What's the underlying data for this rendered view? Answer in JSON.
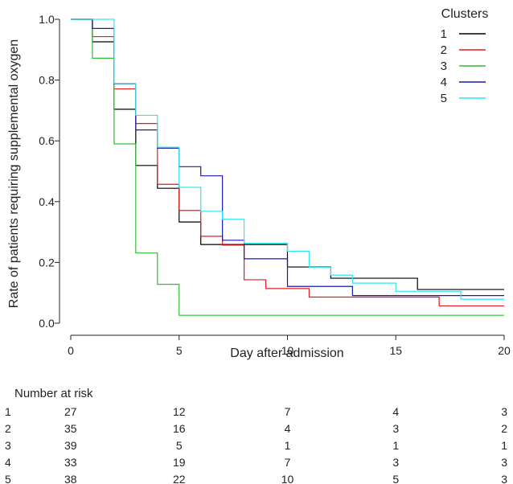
{
  "chart_data": {
    "type": "line",
    "step": true,
    "title": "",
    "xlabel": "Day after admission",
    "ylabel": "Rate of patients requiring supplemental oxygen",
    "xlim": [
      0,
      20
    ],
    "ylim": [
      0,
      1.0
    ],
    "x_ticks": [
      0,
      5,
      10,
      15,
      20
    ],
    "y_ticks": [
      0.0,
      0.2,
      0.4,
      0.6,
      0.8,
      1.0
    ],
    "y_tick_labels": [
      "0.0",
      "0.2",
      "0.4",
      "0.6",
      "0.8",
      "1.0"
    ],
    "grid": false,
    "legend": {
      "title": "Clusters",
      "position": "top-right"
    },
    "series": [
      {
        "name": "1",
        "color": "#000000",
        "x": [
          0,
          1,
          2,
          3,
          4,
          5,
          6,
          7,
          8,
          10,
          12,
          16,
          20
        ],
        "y": [
          1.0,
          0.926,
          0.704,
          0.519,
          0.444,
          0.333,
          0.259,
          0.259,
          0.259,
          0.185,
          0.148,
          0.111,
          0.111
        ]
      },
      {
        "name": "2",
        "color": "#e41a1c",
        "x": [
          0,
          1,
          2,
          3,
          4,
          5,
          6,
          7,
          8,
          9,
          11,
          17,
          20
        ],
        "y": [
          1.0,
          0.943,
          0.771,
          0.657,
          0.457,
          0.371,
          0.286,
          0.257,
          0.143,
          0.114,
          0.086,
          0.057,
          0.057
        ]
      },
      {
        "name": "3",
        "color": "#33bb33",
        "x": [
          0,
          1,
          2,
          3,
          4,
          5,
          20
        ],
        "y": [
          1.0,
          0.872,
          0.59,
          0.231,
          0.128,
          0.026,
          0.026
        ]
      },
      {
        "name": "4",
        "color": "#1a1aa8",
        "x": [
          0,
          1,
          2,
          3,
          4,
          5,
          6,
          7,
          8,
          10,
          13,
          20
        ],
        "y": [
          1.0,
          0.97,
          0.788,
          0.636,
          0.576,
          0.515,
          0.485,
          0.273,
          0.212,
          0.121,
          0.091,
          0.091
        ]
      },
      {
        "name": "5",
        "color": "#2ee6f0",
        "x": [
          0,
          1,
          2,
          3,
          4,
          5,
          6,
          7,
          8,
          10,
          11,
          12,
          13,
          15,
          18,
          20
        ],
        "y": [
          1.0,
          1.0,
          0.789,
          0.684,
          0.579,
          0.447,
          0.368,
          0.342,
          0.263,
          0.237,
          0.184,
          0.158,
          0.132,
          0.105,
          0.079,
          0.079
        ]
      }
    ],
    "risk_table": {
      "title": "Number at risk",
      "times": [
        0,
        5,
        10,
        15,
        20
      ],
      "rows": [
        {
          "cluster": "1",
          "counts": [
            "27",
            "12",
            "7",
            "4",
            "3"
          ]
        },
        {
          "cluster": "2",
          "counts": [
            "35",
            "16",
            "4",
            "3",
            "2"
          ]
        },
        {
          "cluster": "3",
          "counts": [
            "39",
            "5",
            "1",
            "1",
            "1"
          ]
        },
        {
          "cluster": "4",
          "counts": [
            "33",
            "19",
            "7",
            "3",
            "3"
          ]
        },
        {
          "cluster": "5",
          "counts": [
            "38",
            "22",
            "10",
            "5",
            "3"
          ]
        }
      ]
    }
  }
}
